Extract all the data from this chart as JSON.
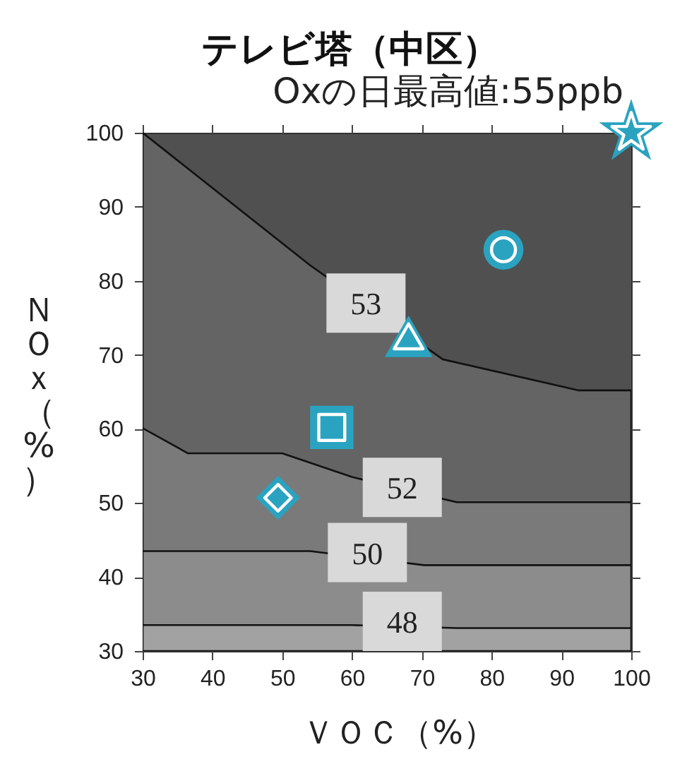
{
  "chart_data": {
    "type": "area",
    "title": "テレビ塔（中区）",
    "subtitle": "Oxの日最高値:55ppb",
    "xlabel": "ＶＯＣ（%）",
    "ylabel": "ＮＯｘ（%）",
    "xlim": [
      30,
      100
    ],
    "ylim": [
      30,
      100
    ],
    "xticks": [
      30,
      40,
      50,
      60,
      70,
      80,
      90,
      100
    ],
    "yticks": [
      30,
      40,
      50,
      60,
      70,
      80,
      90,
      100
    ],
    "series": [
      {
        "color": "#646464",
        "x": [
          30,
          54,
          73,
          92.5,
          100
        ],
        "values": [
          100,
          82.1,
          69.4,
          65.2,
          65.2
        ]
      },
      {
        "color": "#7a7a7a",
        "x": [
          30,
          36.5,
          50,
          60,
          75,
          100
        ],
        "values": [
          60.1,
          56.7,
          56.7,
          53.5,
          50.1,
          50.1
        ]
      },
      {
        "color": "#8c8c8c",
        "x": [
          30,
          54,
          70.3,
          100
        ],
        "values": [
          43.5,
          43.5,
          41.6,
          41.6
        ]
      },
      {
        "color": "#a2a2a2",
        "x": [
          30,
          60,
          75,
          100
        ],
        "values": [
          33.5,
          33.5,
          33.1,
          33.1
        ]
      },
      {
        "type": "scatter",
        "marker": "circle",
        "color": "#2aa3c0",
        "x": [
          81.7
        ],
        "values": [
          84.2
        ]
      },
      {
        "type": "scatter",
        "marker": "triangle",
        "color": "#2aa3c0",
        "x": [
          68.1
        ],
        "values": [
          72.5
        ]
      },
      {
        "type": "scatter",
        "marker": "square",
        "color": "#2aa3c0",
        "x": [
          57.1
        ],
        "values": [
          60.2
        ]
      },
      {
        "type": "scatter",
        "marker": "diamond",
        "color": "#2aa3c0",
        "x": [
          49.4
        ],
        "values": [
          50.7
        ]
      },
      {
        "type": "scatter",
        "marker": "star",
        "color": "#2aa3c0",
        "x": [
          100
        ],
        "values": [
          100
        ]
      }
    ],
    "annotations": [
      {
        "text": "53",
        "x": 62,
        "y": 77
      },
      {
        "text": "52",
        "x": 67.2,
        "y": 52.1
      },
      {
        "text": "50",
        "x": 62.2,
        "y": 43.3
      },
      {
        "text": "48",
        "x": 67.2,
        "y": 34
      }
    ]
  }
}
